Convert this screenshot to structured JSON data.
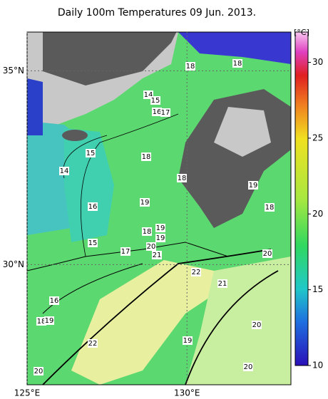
{
  "title": "Daily 100m Temperatures 09 Jun. 2013.",
  "map": {
    "type": "map",
    "xlim": [
      125,
      133.25
    ],
    "ylim": [
      26.9,
      36.0
    ],
    "xticks": [
      {
        "value": 125,
        "label": "125°E"
      },
      {
        "value": 130,
        "label": "130°E"
      }
    ],
    "yticks": [
      {
        "value": 35,
        "label": "35°N"
      },
      {
        "value": 30,
        "label": "30°N"
      }
    ],
    "contour_labels": [
      18,
      18,
      14,
      15,
      16,
      17,
      15,
      14,
      18,
      18,
      19,
      16,
      19,
      18,
      18,
      19,
      19,
      15,
      17,
      20,
      21,
      20,
      22,
      21,
      16,
      18,
      19,
      20,
      19,
      22,
      20,
      20
    ]
  },
  "colorbar": {
    "unit": "[°C]",
    "clim": [
      10,
      32
    ],
    "ticks": [
      10,
      15,
      20,
      25,
      30
    ]
  }
}
